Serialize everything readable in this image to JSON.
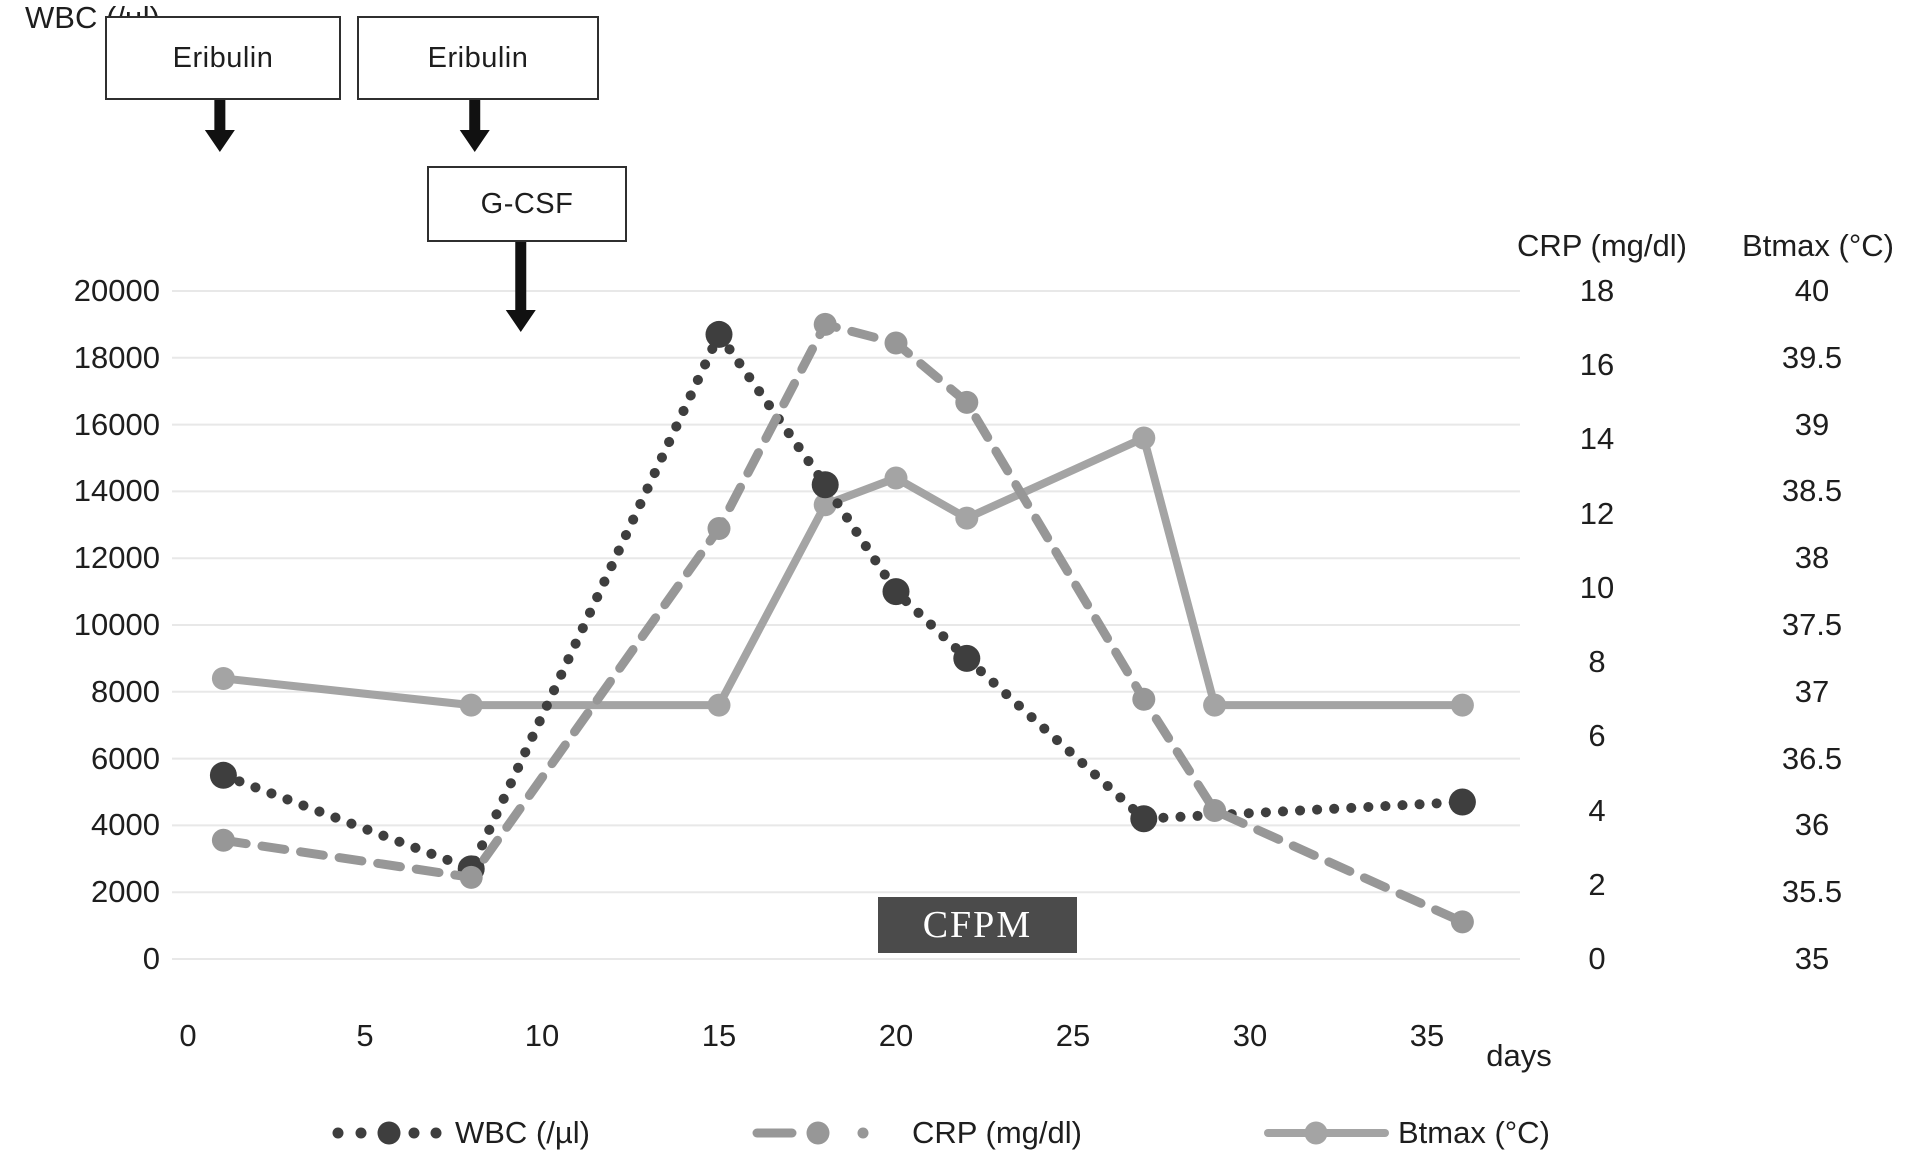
{
  "chart_data": {
    "type": "line",
    "title": "",
    "grid": "horizontal",
    "x_axis": {
      "label": "days",
      "ticks": [
        "0",
        "5",
        "10",
        "15",
        "20",
        "25",
        "30",
        "35"
      ],
      "range": [
        0,
        37.5
      ]
    },
    "y_axes": {
      "left": {
        "label": "WBC (/µl)",
        "range": [
          0,
          20000
        ],
        "ticks": [
          "20000",
          "18000",
          "16000",
          "14000",
          "12000",
          "10000",
          "8000",
          "6000",
          "4000",
          "2000",
          "0"
        ]
      },
      "right_crp": {
        "label": "CRP (mg/dl)",
        "range": [
          0,
          18
        ],
        "ticks": [
          "18",
          "16",
          "14",
          "12",
          "10",
          "8",
          "6",
          "4",
          "2",
          "0"
        ]
      },
      "right_btmax": {
        "label": "Btmax (°C)",
        "range": [
          35,
          40
        ],
        "ticks": [
          "40",
          "39.5",
          "39",
          "38.5",
          "38",
          "37.5",
          "37",
          "36.5",
          "36",
          "35.5",
          "35"
        ]
      }
    },
    "series": [
      {
        "name": "WBC (/µl)",
        "axis": "left",
        "style": "dotted",
        "color": "#3e3e3e",
        "points": [
          {
            "day": 1,
            "value": 5500
          },
          {
            "day": 8,
            "value": 2700
          },
          {
            "day": 15,
            "value": 18700
          },
          {
            "day": 18,
            "value": 14200
          },
          {
            "day": 20,
            "value": 11000
          },
          {
            "day": 22,
            "value": 9000
          },
          {
            "day": 27,
            "value": 4200
          },
          {
            "day": 36,
            "value": 4700
          }
        ]
      },
      {
        "name": "CRP (mg/dl)",
        "axis": "right_crp",
        "style": "dashed",
        "color": "#979797",
        "points": [
          {
            "day": 1,
            "value": 3.2
          },
          {
            "day": 8,
            "value": 2.2
          },
          {
            "day": 15,
            "value": 11.6
          },
          {
            "day": 18,
            "value": 17.1
          },
          {
            "day": 20,
            "value": 16.6
          },
          {
            "day": 22,
            "value": 15.0
          },
          {
            "day": 27,
            "value": 7.0
          },
          {
            "day": 29,
            "value": 4.0
          },
          {
            "day": 36,
            "value": 1.0
          }
        ]
      },
      {
        "name": "Btmax (°C)",
        "axis": "right_btmax",
        "style": "solid",
        "color": "#a4a4a4",
        "points": [
          {
            "day": 1,
            "value": 37.1
          },
          {
            "day": 8,
            "value": 36.9
          },
          {
            "day": 15,
            "value": 36.9
          },
          {
            "day": 18,
            "value": 38.4
          },
          {
            "day": 20,
            "value": 38.6
          },
          {
            "day": 22,
            "value": 38.3
          },
          {
            "day": 27,
            "value": 38.9
          },
          {
            "day": 29,
            "value": 36.9
          },
          {
            "day": 36,
            "value": 36.9
          }
        ]
      }
    ],
    "legend": {
      "position": "bottom"
    },
    "annotations": {
      "dose_boxes": [
        {
          "label": "Eribulin",
          "arrow_day": 0.9
        },
        {
          "label": "Eribulin",
          "arrow_day": 8.1
        },
        {
          "label": "G-CSF",
          "arrow_day": 9.4
        }
      ],
      "treatment_bar": {
        "label": "CFPM",
        "day_start": 19.5,
        "day_end": 25.1
      }
    }
  }
}
